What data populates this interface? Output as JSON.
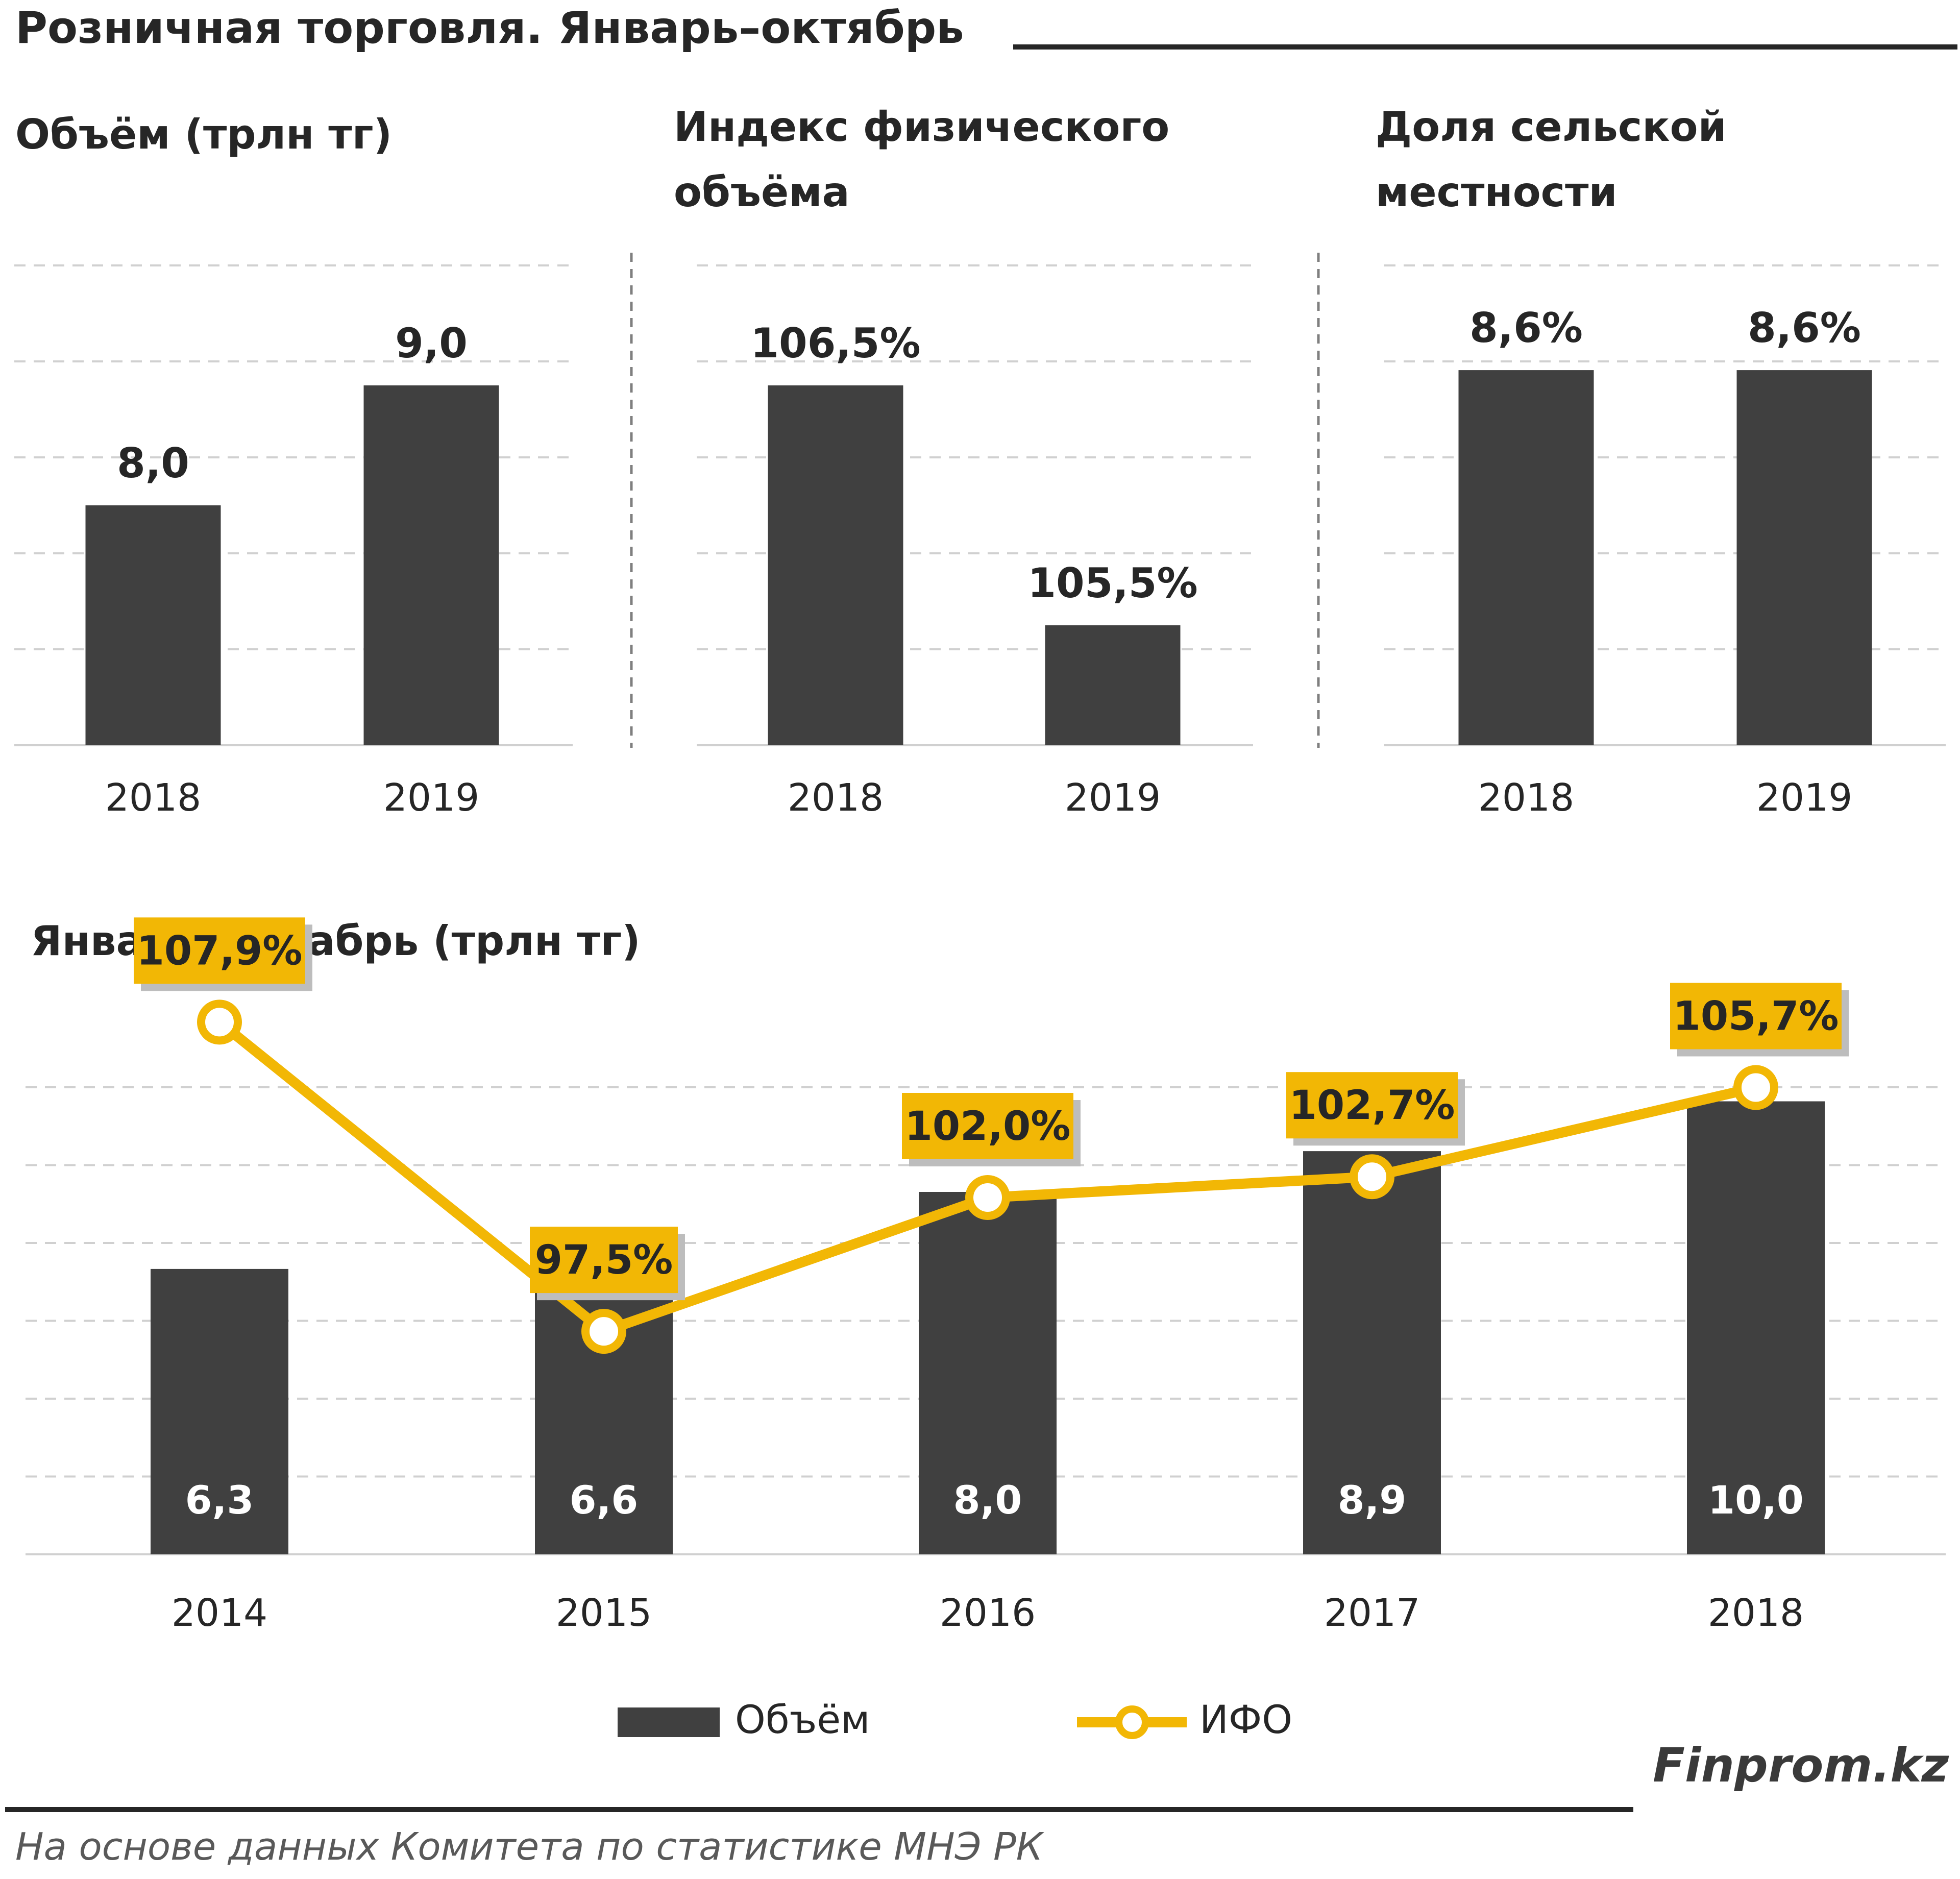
{
  "header": {
    "title": "Розничная торговля. Январь–октябрь"
  },
  "chart_data": [
    {
      "type": "bar",
      "title": "Объём (трлн тг)",
      "categories": [
        "2018",
        "2019"
      ],
      "values": [
        8.0,
        9.0
      ],
      "value_labels": [
        "8,0",
        "9,0"
      ],
      "ylim": [
        6.0,
        10.0
      ],
      "grid": true,
      "color": "#404040"
    },
    {
      "type": "bar",
      "title": "Индекс физического объёма",
      "categories": [
        "2018",
        "2019"
      ],
      "values": [
        106.5,
        105.5
      ],
      "value_labels": [
        "106,5%",
        "105,5%"
      ],
      "ylim": [
        105.0,
        107.0
      ],
      "grid": true,
      "color": "#404040"
    },
    {
      "type": "bar",
      "title": "Доля сельской местности",
      "categories": [
        "2018",
        "2019"
      ],
      "values": [
        8.6,
        8.6
      ],
      "value_labels": [
        "8,6%",
        "8,6%"
      ],
      "ylim": [
        0,
        11
      ],
      "grid": true,
      "color": "#404040"
    },
    {
      "type": "bar+line",
      "title": "Январь–декабрь (трлн тг)",
      "categories": [
        "2014",
        "2015",
        "2016",
        "2017",
        "2018"
      ],
      "series": [
        {
          "name": "Объём",
          "type": "bar",
          "values": [
            6.3,
            6.6,
            8.0,
            8.9,
            10.0
          ],
          "labels": [
            "6,3",
            "6,6",
            "8,0",
            "8,9",
            "10,0"
          ],
          "color": "#404040"
        },
        {
          "name": "ИФО",
          "type": "line",
          "values": [
            107.9,
            97.5,
            102.0,
            102.7,
            105.7
          ],
          "labels": [
            "107,9%",
            "97,5%",
            "102,0%",
            "102,7%",
            "105,7%"
          ],
          "color": "#f2b705"
        }
      ],
      "ylim_bars": [
        0,
        12
      ],
      "ylim_line": [
        90,
        110
      ],
      "legend": "bottom-center",
      "grid": true
    }
  ],
  "footer": {
    "brand": "Finprom.kz",
    "source": "На основе данных  Комитета по статистике МНЭ РК"
  }
}
